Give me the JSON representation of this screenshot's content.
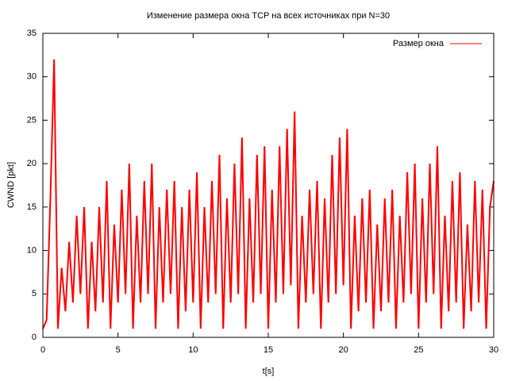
{
  "chart_data": {
    "type": "line",
    "title": "Изменение размера окна TCP на всех источниках при N=30",
    "x_label": "t[s]",
    "y_label": "CWND [pkt]",
    "x": [
      0,
      0.25,
      0.5,
      0.75,
      1,
      1.25,
      1.5,
      1.75,
      2,
      2.25,
      2.5,
      2.75,
      3,
      3.25,
      3.5,
      3.75,
      4,
      4.25,
      4.5,
      4.75,
      5,
      5.25,
      5.5,
      5.75,
      6,
      6.25,
      6.5,
      6.75,
      7,
      7.25,
      7.5,
      7.75,
      8,
      8.25,
      8.5,
      8.75,
      9,
      9.25,
      9.5,
      9.75,
      10,
      10.25,
      10.5,
      10.75,
      11,
      11.25,
      11.5,
      11.75,
      12,
      12.25,
      12.5,
      12.75,
      13,
      13.25,
      13.5,
      13.75,
      14,
      14.25,
      14.5,
      14.75,
      15,
      15.25,
      15.5,
      15.75,
      16,
      16.25,
      16.5,
      16.75,
      17,
      17.25,
      17.5,
      17.75,
      18,
      18.25,
      18.5,
      18.75,
      19,
      19.25,
      19.5,
      19.75,
      20,
      20.25,
      20.5,
      20.75,
      21,
      21.25,
      21.5,
      21.75,
      22,
      22.25,
      22.5,
      22.75,
      23,
      23.25,
      23.5,
      23.75,
      24,
      24.25,
      24.5,
      24.75,
      25,
      25.25,
      25.5,
      25.75,
      26,
      26.25,
      26.5,
      26.75,
      27,
      27.25,
      27.5,
      27.75,
      28,
      28.25,
      28.5,
      28.75,
      29,
      29.25,
      29.5,
      29.75,
      30
    ],
    "series": [
      {
        "name": "Размер окна",
        "color": "#ff0000",
        "values": [
          1,
          2,
          16,
          32,
          1,
          8,
          3,
          11,
          4,
          14,
          5,
          15,
          1,
          11,
          3,
          15,
          4,
          18,
          1,
          13,
          4,
          17,
          5,
          20,
          1,
          14,
          4,
          18,
          5,
          20,
          1,
          15,
          4,
          17,
          5,
          18,
          1,
          15,
          3,
          17,
          4,
          19,
          1,
          15,
          4,
          18,
          5,
          21,
          1,
          16,
          4,
          20,
          5,
          23,
          1,
          16,
          4,
          21,
          5,
          22,
          1,
          17,
          4,
          22,
          5,
          24,
          6,
          26,
          1,
          14,
          4,
          17,
          5,
          18,
          1,
          16,
          4,
          21,
          5,
          23,
          6,
          24,
          1,
          14,
          3,
          16,
          4,
          17,
          1,
          13,
          3,
          16,
          4,
          17,
          1,
          14,
          4,
          19,
          5,
          20,
          1,
          16,
          4,
          20,
          5,
          22,
          1,
          14,
          3,
          18,
          4,
          19,
          1,
          13,
          3,
          18,
          4,
          17,
          1,
          15,
          18
        ]
      }
    ],
    "xlim": [
      0,
      30
    ],
    "xticks": [
      0,
      5,
      10,
      15,
      20,
      25,
      30
    ],
    "ylim": [
      0,
      35
    ],
    "yticks": [
      0,
      5,
      10,
      15,
      20,
      25,
      30,
      35
    ],
    "legend": "top right"
  }
}
